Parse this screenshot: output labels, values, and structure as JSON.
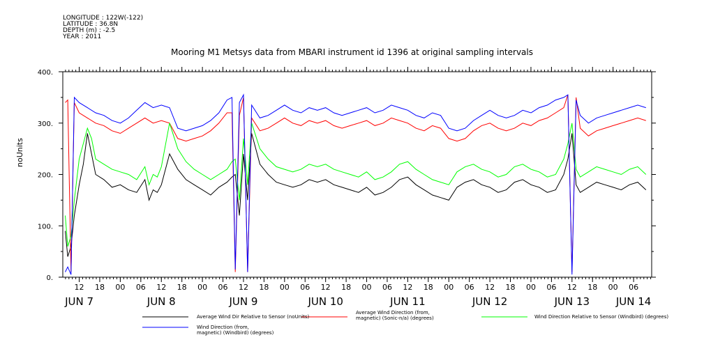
{
  "header": {
    "longitude": "LONGITUDE : 122W(-122)",
    "latitude": "LATITUDE : 36.8N",
    "depth": "DEPTH (m) : -2.5",
    "year": "YEAR : 2011"
  },
  "chart_data": {
    "type": "line",
    "title": "Mooring M1 Metsys data from MBARI instrument id 1396 at original sampling intervals",
    "ylabel": "noUnits",
    "ylim": [
      0,
      400
    ],
    "yticks": [
      0,
      100,
      200,
      300,
      400
    ],
    "ytick_labels": [
      "0.",
      "100.",
      "200.",
      "300.",
      "400."
    ],
    "xlim": [
      7.3,
      14.47
    ],
    "hour_ticks": [
      {
        "x": 7.5,
        "label": "12"
      },
      {
        "x": 7.75,
        "label": "18"
      },
      {
        "x": 8.0,
        "label": "00"
      },
      {
        "x": 8.25,
        "label": "06"
      },
      {
        "x": 8.5,
        "label": "12"
      },
      {
        "x": 8.75,
        "label": "18"
      },
      {
        "x": 9.0,
        "label": "00"
      },
      {
        "x": 9.25,
        "label": "06"
      },
      {
        "x": 9.5,
        "label": "12"
      },
      {
        "x": 9.75,
        "label": "18"
      },
      {
        "x": 10.0,
        "label": "00"
      },
      {
        "x": 10.25,
        "label": "06"
      },
      {
        "x": 10.5,
        "label": "12"
      },
      {
        "x": 10.75,
        "label": "18"
      },
      {
        "x": 11.0,
        "label": "00"
      },
      {
        "x": 11.25,
        "label": "06"
      },
      {
        "x": 11.5,
        "label": "12"
      },
      {
        "x": 11.75,
        "label": "18"
      },
      {
        "x": 12.0,
        "label": "00"
      },
      {
        "x": 12.25,
        "label": "06"
      },
      {
        "x": 12.5,
        "label": "12"
      },
      {
        "x": 12.75,
        "label": "18"
      },
      {
        "x": 13.0,
        "label": "00"
      },
      {
        "x": 13.25,
        "label": "06"
      },
      {
        "x": 13.5,
        "label": "12"
      },
      {
        "x": 13.75,
        "label": "18"
      },
      {
        "x": 14.0,
        "label": "00"
      },
      {
        "x": 14.25,
        "label": "06"
      }
    ],
    "day_ticks": [
      {
        "x": 7.5,
        "label": "JUN  7"
      },
      {
        "x": 8.5,
        "label": "JUN  8"
      },
      {
        "x": 9.5,
        "label": "JUN  9"
      },
      {
        "x": 10.5,
        "label": "JUN 10"
      },
      {
        "x": 11.5,
        "label": "JUN 11"
      },
      {
        "x": 12.5,
        "label": "JUN 12"
      },
      {
        "x": 13.5,
        "label": "JUN 13"
      },
      {
        "x": 14.25,
        "label": "JUN 14"
      }
    ],
    "series": [
      {
        "name": "Average Wind Dir Relative to Sensor (noUnits)",
        "color": "#000000",
        "x": [
          7.33,
          7.36,
          7.4,
          7.44,
          7.5,
          7.55,
          7.6,
          7.65,
          7.7,
          7.8,
          7.9,
          8.0,
          8.1,
          8.2,
          8.3,
          8.35,
          8.4,
          8.45,
          8.5,
          8.6,
          8.7,
          8.8,
          8.9,
          9.0,
          9.1,
          9.2,
          9.3,
          9.36,
          9.4,
          9.45,
          9.5,
          9.55,
          9.6,
          9.7,
          9.8,
          9.9,
          10.0,
          10.1,
          10.2,
          10.3,
          10.4,
          10.5,
          10.6,
          10.7,
          10.8,
          10.9,
          11.0,
          11.1,
          11.2,
          11.3,
          11.4,
          11.5,
          11.6,
          11.7,
          11.8,
          11.9,
          12.0,
          12.1,
          12.2,
          12.3,
          12.4,
          12.5,
          12.6,
          12.7,
          12.8,
          12.9,
          13.0,
          13.1,
          13.2,
          13.3,
          13.4,
          13.45,
          13.5,
          13.55,
          13.6,
          13.7,
          13.8,
          13.9,
          14.0,
          14.1,
          14.2,
          14.3,
          14.4
        ],
        "y": [
          90,
          40,
          60,
          120,
          180,
          220,
          280,
          240,
          200,
          190,
          175,
          180,
          170,
          165,
          190,
          150,
          170,
          165,
          180,
          240,
          210,
          190,
          180,
          170,
          160,
          175,
          185,
          195,
          200,
          120,
          240,
          150,
          280,
          220,
          200,
          185,
          180,
          175,
          180,
          190,
          185,
          190,
          180,
          175,
          170,
          165,
          175,
          160,
          165,
          175,
          190,
          195,
          180,
          170,
          160,
          155,
          150,
          175,
          185,
          190,
          180,
          175,
          165,
          170,
          185,
          190,
          180,
          175,
          165,
          170,
          200,
          230,
          280,
          180,
          165,
          175,
          185,
          180,
          175,
          170,
          180,
          185,
          170
        ]
      },
      {
        "name": "Average Wind Direction (from, magnetic) (Sonic-n/a) (degrees)",
        "color": "#ff0000",
        "x": [
          7.33,
          7.36,
          7.4,
          7.44,
          7.5,
          7.6,
          7.7,
          7.8,
          7.9,
          8.0,
          8.1,
          8.2,
          8.3,
          8.4,
          8.5,
          8.6,
          8.7,
          8.8,
          8.9,
          9.0,
          9.1,
          9.2,
          9.3,
          9.36,
          9.4,
          9.45,
          9.5,
          9.55,
          9.6,
          9.7,
          9.8,
          9.9,
          10.0,
          10.1,
          10.2,
          10.3,
          10.4,
          10.5,
          10.6,
          10.7,
          10.8,
          10.9,
          11.0,
          11.1,
          11.2,
          11.3,
          11.4,
          11.5,
          11.6,
          11.7,
          11.8,
          11.9,
          12.0,
          12.1,
          12.2,
          12.3,
          12.4,
          12.5,
          12.6,
          12.7,
          12.8,
          12.9,
          13.0,
          13.1,
          13.2,
          13.3,
          13.4,
          13.45,
          13.5,
          13.55,
          13.6,
          13.7,
          13.8,
          13.9,
          14.0,
          14.1,
          14.2,
          14.3,
          14.4
        ],
        "y": [
          340,
          345,
          10,
          340,
          320,
          310,
          300,
          295,
          285,
          280,
          290,
          300,
          310,
          300,
          305,
          300,
          270,
          265,
          270,
          275,
          285,
          300,
          320,
          320,
          10,
          315,
          350,
          10,
          310,
          285,
          290,
          300,
          310,
          300,
          295,
          305,
          300,
          305,
          295,
          290,
          295,
          300,
          305,
          295,
          300,
          310,
          305,
          300,
          290,
          285,
          295,
          290,
          270,
          265,
          270,
          285,
          295,
          300,
          290,
          285,
          290,
          300,
          295,
          305,
          310,
          320,
          330,
          355,
          10,
          350,
          290,
          275,
          285,
          290,
          295,
          300,
          305,
          310,
          305
        ]
      },
      {
        "name": "Wind Direction Relative to Sensor (Windbird) (degrees)",
        "color": "#00ff00",
        "x": [
          7.33,
          7.36,
          7.4,
          7.44,
          7.5,
          7.55,
          7.6,
          7.65,
          7.7,
          7.8,
          7.9,
          8.0,
          8.1,
          8.2,
          8.3,
          8.35,
          8.4,
          8.45,
          8.5,
          8.6,
          8.7,
          8.8,
          8.9,
          9.0,
          9.1,
          9.2,
          9.3,
          9.36,
          9.4,
          9.45,
          9.5,
          9.55,
          9.6,
          9.7,
          9.8,
          9.9,
          10.0,
          10.1,
          10.2,
          10.3,
          10.4,
          10.5,
          10.6,
          10.7,
          10.8,
          10.9,
          11.0,
          11.1,
          11.2,
          11.3,
          11.4,
          11.5,
          11.6,
          11.7,
          11.8,
          11.9,
          12.0,
          12.1,
          12.2,
          12.3,
          12.4,
          12.5,
          12.6,
          12.7,
          12.8,
          12.9,
          13.0,
          13.1,
          13.2,
          13.3,
          13.4,
          13.45,
          13.5,
          13.55,
          13.6,
          13.7,
          13.8,
          13.9,
          14.0,
          14.1,
          14.2,
          14.3,
          14.4
        ],
        "y": [
          120,
          60,
          80,
          150,
          230,
          260,
          290,
          270,
          230,
          220,
          210,
          205,
          200,
          190,
          215,
          180,
          200,
          195,
          215,
          300,
          250,
          225,
          210,
          200,
          190,
          200,
          210,
          225,
          230,
          150,
          270,
          180,
          300,
          250,
          230,
          215,
          210,
          205,
          210,
          220,
          215,
          220,
          210,
          205,
          200,
          195,
          205,
          190,
          195,
          205,
          220,
          225,
          210,
          200,
          190,
          185,
          180,
          205,
          215,
          220,
          210,
          205,
          195,
          200,
          215,
          220,
          210,
          205,
          195,
          200,
          230,
          260,
          300,
          210,
          195,
          205,
          215,
          210,
          205,
          200,
          210,
          215,
          200
        ]
      },
      {
        "name": "Wind Direction (from, magnetic) (Windbird) (degrees)",
        "color": "#0000ff",
        "x": [
          7.33,
          7.36,
          7.4,
          7.44,
          7.5,
          7.6,
          7.7,
          7.8,
          7.9,
          8.0,
          8.1,
          8.2,
          8.3,
          8.4,
          8.5,
          8.6,
          8.7,
          8.8,
          8.9,
          9.0,
          9.1,
          9.2,
          9.3,
          9.36,
          9.4,
          9.45,
          9.5,
          9.55,
          9.6,
          9.7,
          9.8,
          9.9,
          10.0,
          10.1,
          10.2,
          10.3,
          10.4,
          10.5,
          10.6,
          10.7,
          10.8,
          10.9,
          11.0,
          11.1,
          11.2,
          11.3,
          11.4,
          11.5,
          11.6,
          11.7,
          11.8,
          11.9,
          12.0,
          12.1,
          12.2,
          12.3,
          12.4,
          12.5,
          12.6,
          12.7,
          12.8,
          12.9,
          13.0,
          13.1,
          13.2,
          13.3,
          13.4,
          13.45,
          13.5,
          13.55,
          13.6,
          13.7,
          13.8,
          13.9,
          14.0,
          14.1,
          14.2,
          14.3,
          14.4
        ],
        "y": [
          10,
          20,
          5,
          350,
          340,
          330,
          320,
          315,
          305,
          300,
          310,
          325,
          340,
          330,
          335,
          330,
          290,
          285,
          290,
          295,
          305,
          320,
          345,
          350,
          15,
          340,
          355,
          10,
          335,
          310,
          315,
          325,
          335,
          325,
          320,
          330,
          325,
          330,
          320,
          315,
          320,
          325,
          330,
          320,
          325,
          335,
          330,
          325,
          315,
          310,
          320,
          315,
          290,
          285,
          290,
          305,
          315,
          325,
          315,
          310,
          315,
          325,
          320,
          330,
          335,
          345,
          350,
          355,
          5,
          345,
          315,
          300,
          310,
          315,
          320,
          325,
          330,
          335,
          330
        ]
      }
    ],
    "legend": [
      {
        "text": "Average Wind Dir Relative to Sensor (noUnits)",
        "color": "#000000"
      },
      {
        "text": "Average Wind Direction (from,\nmagnetic) (Sonic-n/a) (degrees)",
        "color": "#ff0000"
      },
      {
        "text": "Wind Direction Relative to Sensor (Windbird) (degrees)",
        "color": "#00ff00"
      },
      {
        "text": "Wind Direction (from,\nmagnetic) (Windbird) (degrees)",
        "color": "#0000ff"
      }
    ],
    "grid": false
  }
}
